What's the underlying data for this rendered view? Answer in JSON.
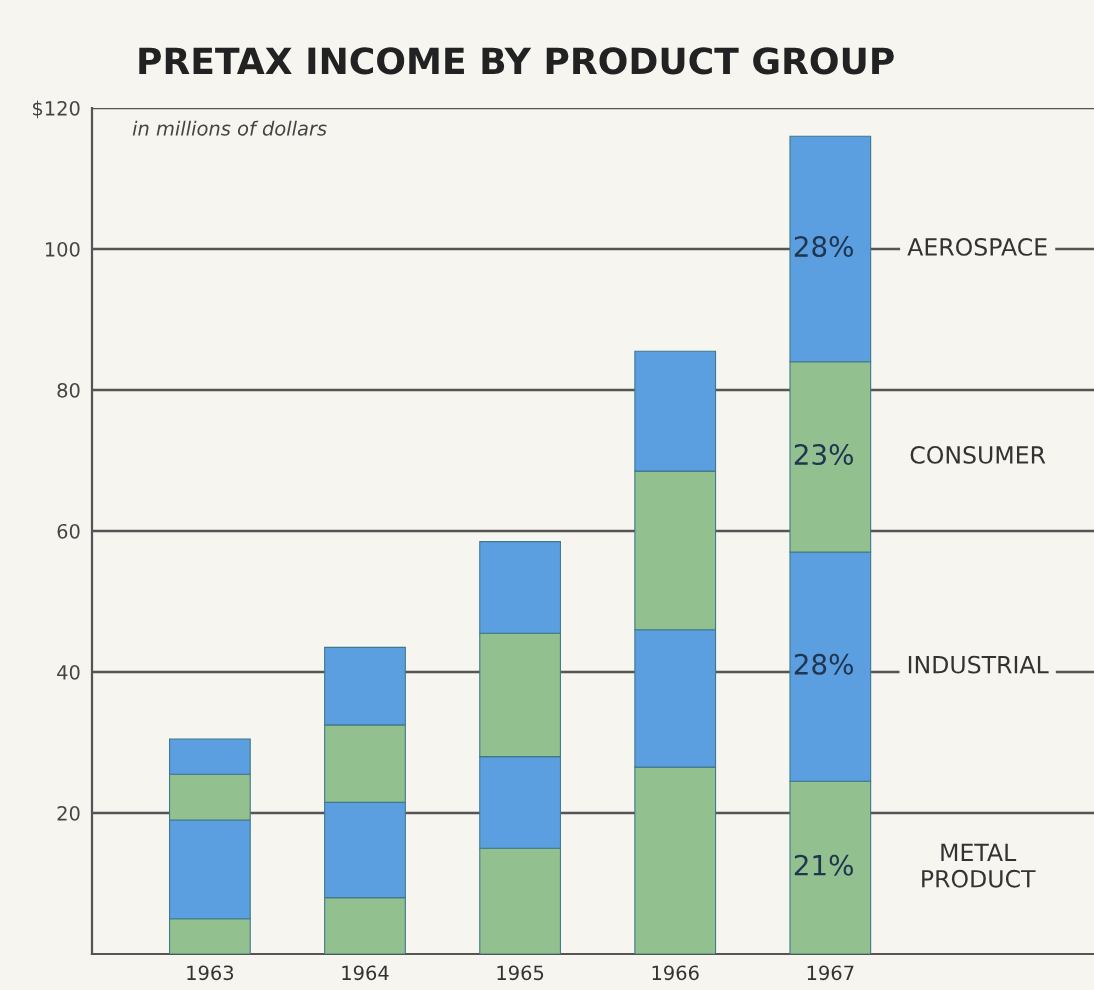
{
  "chart_data": {
    "type": "bar",
    "title": "PRETAX INCOME BY PRODUCT GROUP",
    "subtitle": "in millions of dollars",
    "categories": [
      "1963",
      "1964",
      "1965",
      "1966",
      "1967"
    ],
    "stacked": true,
    "series": [
      {
        "name": "METAL\nPRODUCT",
        "color": "#93c08f",
        "values": [
          5,
          8,
          15,
          26.5,
          24.5
        ]
      },
      {
        "name": "INDUSTRIAL",
        "color": "#5b9fe0",
        "values": [
          14,
          13.5,
          13,
          19.5,
          32.5
        ]
      },
      {
        "name": "CONSUMER",
        "color": "#93c08f",
        "values": [
          6.5,
          11,
          17.5,
          22.5,
          27
        ]
      },
      {
        "name": "AEROSPACE",
        "color": "#5b9fe0",
        "values": [
          5,
          11,
          13,
          17,
          32
        ]
      }
    ],
    "annotations": [
      "21%",
      "28%",
      "23%",
      "28%"
    ],
    "ylim": [
      0,
      120
    ],
    "yticks": [
      20,
      40,
      60,
      80,
      100,
      {
        "value": 120,
        "label": "$120"
      }
    ],
    "grid": "y",
    "legend": false
  }
}
